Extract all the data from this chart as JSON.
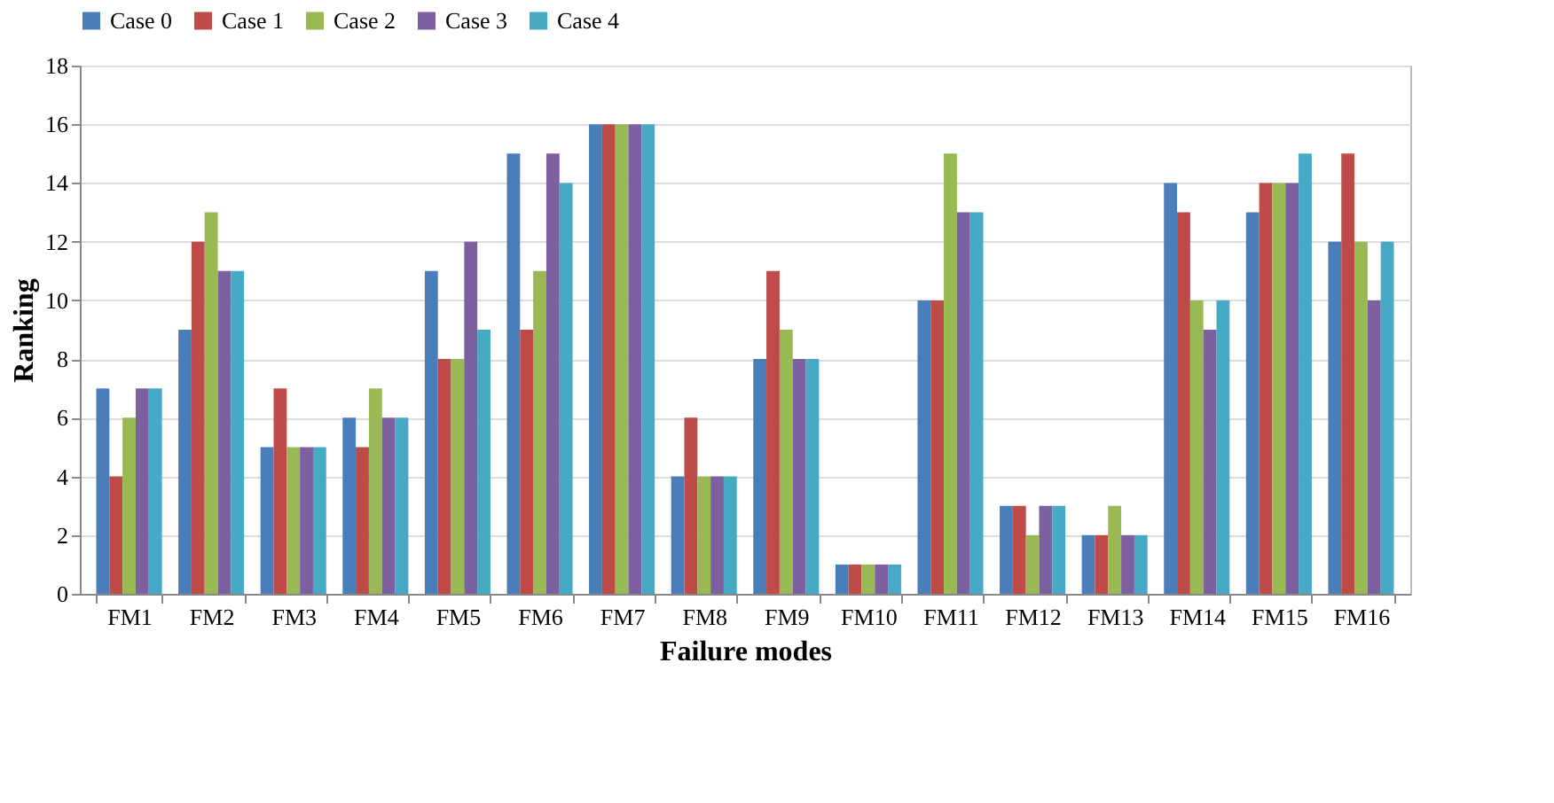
{
  "chart_data": {
    "type": "bar",
    "xlabel": "Failure modes",
    "ylabel": "Ranking",
    "categories": [
      "FM1",
      "FM2",
      "FM3",
      "FM4",
      "FM5",
      "FM6",
      "FM7",
      "FM8",
      "FM9",
      "FM10",
      "FM11",
      "FM12",
      "FM13",
      "FM14",
      "FM15",
      "FM16"
    ],
    "series": [
      {
        "name": "Case 0",
        "color": "#4a7ebb",
        "values": [
          7,
          9,
          5,
          6,
          11,
          15,
          16,
          4,
          8,
          1,
          10,
          3,
          2,
          14,
          13,
          12
        ]
      },
      {
        "name": "Case 1",
        "color": "#be4b48",
        "values": [
          4,
          12,
          7,
          5,
          8,
          9,
          16,
          6,
          11,
          1,
          10,
          3,
          2,
          13,
          14,
          15
        ]
      },
      {
        "name": "Case 2",
        "color": "#98b954",
        "values": [
          6,
          13,
          5,
          7,
          8,
          11,
          16,
          4,
          9,
          1,
          15,
          2,
          3,
          10,
          14,
          12
        ]
      },
      {
        "name": "Case 3",
        "color": "#7d60a0",
        "values": [
          7,
          11,
          5,
          6,
          12,
          15,
          16,
          4,
          8,
          1,
          13,
          3,
          2,
          9,
          14,
          10
        ]
      },
      {
        "name": "Case 4",
        "color": "#46aac5",
        "values": [
          7,
          11,
          5,
          6,
          9,
          14,
          16,
          4,
          8,
          1,
          13,
          3,
          2,
          10,
          15,
          12
        ]
      }
    ],
    "ylim": [
      0,
      18
    ],
    "yticks": [
      0,
      2,
      4,
      6,
      8,
      10,
      12,
      14,
      16,
      18
    ],
    "grid": "y",
    "legend": "top"
  }
}
